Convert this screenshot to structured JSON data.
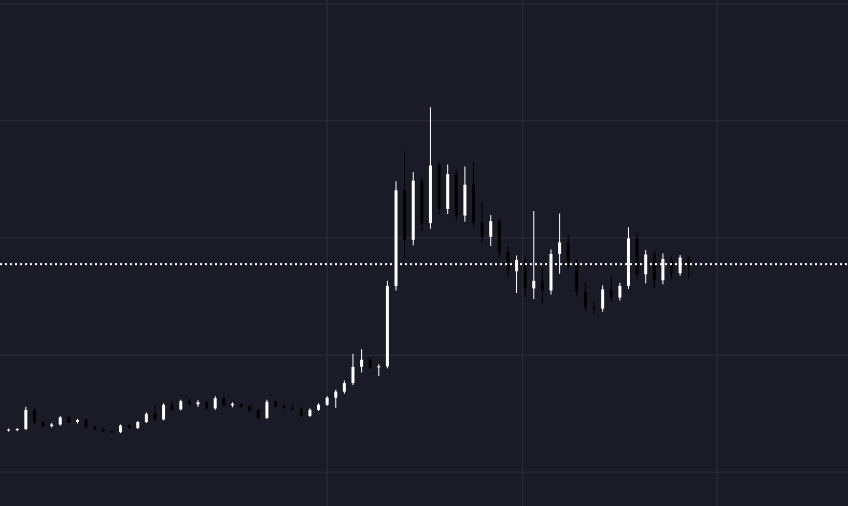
{
  "chart_data": {
    "type": "candlestick",
    "x": [
      0,
      1,
      2,
      3,
      4,
      5,
      6,
      7,
      8,
      9,
      10,
      11,
      12,
      13,
      14,
      15,
      16,
      17,
      18,
      19,
      20,
      21,
      22,
      23,
      24,
      25,
      26,
      27,
      28,
      29,
      30,
      31,
      32,
      33,
      34,
      35,
      36,
      37,
      38,
      39,
      40,
      41,
      42,
      43,
      44,
      45,
      46,
      47,
      48,
      49,
      50,
      51,
      52,
      53,
      54,
      55,
      56,
      57,
      58,
      59,
      60,
      61,
      62,
      63,
      64,
      65,
      66,
      67,
      68,
      69,
      70,
      71,
      72,
      73,
      74,
      75,
      76,
      77,
      78,
      79
    ],
    "open": [
      15,
      15.1,
      15.2,
      19.0,
      16.5,
      15.8,
      16.1,
      17.5,
      16.6,
      17.0,
      15.6,
      15.1,
      14.8,
      14.6,
      15.9,
      15.4,
      16.6,
      18.2,
      17.1,
      20.0,
      19.1,
      20.7,
      20.1,
      20.5,
      19.3,
      21.3,
      19.9,
      20.2,
      19.6,
      18.9,
      17.4,
      20.6,
      19.7,
      19.4,
      19.2,
      17.8,
      19.0,
      20.0,
      21.4,
      22.6,
      24.3,
      27.5,
      28.9,
      27.4,
      27.6,
      43.5,
      62.4,
      52.6,
      64.3,
      55.9,
      67.3,
      58.7,
      65.6,
      57.4,
      63.5,
      56.0,
      53.2,
      56.3,
      50.1,
      46.4,
      48.6,
      43.0,
      44.5,
      42.6,
      49.8,
      52.1,
      47.9,
      42.3,
      39.3,
      39.0,
      42.8,
      41.2,
      43.5,
      52.9,
      45.8,
      49.7,
      44.6,
      48.8,
      46.0,
      49.1
    ],
    "high": [
      15.3,
      15.4,
      19.6,
      19.3,
      16.8,
      16.4,
      17.8,
      17.8,
      17.2,
      17.3,
      15.9,
      15.3,
      15.0,
      16.1,
      16.1,
      16.8,
      18.5,
      19.9,
      20.3,
      20.8,
      21.0,
      21.2,
      20.9,
      20.8,
      21.7,
      21.6,
      20.5,
      20.4,
      19.9,
      19.2,
      21.0,
      20.9,
      20.1,
      20.0,
      19.5,
      19.3,
      20.3,
      21.7,
      23.0,
      24.8,
      30.1,
      31.0,
      29.3,
      28.0,
      44.5,
      64.2,
      70.2,
      66.0,
      65.0,
      78.8,
      68.1,
      67.5,
      66.5,
      67.1,
      67.9,
      60.1,
      57.5,
      56.8,
      51.3,
      49.5,
      49.2,
      58.3,
      47.2,
      50.7,
      57.8,
      53.6,
      48.8,
      44.2,
      40.5,
      43.6,
      45.4,
      44.1,
      55.1,
      54.0,
      50.6,
      50.3,
      49.9,
      49.4,
      49.6,
      49.4
    ],
    "low": [
      14.7,
      14.8,
      15.0,
      16.2,
      15.6,
      15.5,
      15.9,
      16.4,
      16.3,
      15.4,
      14.9,
      14.6,
      14.4,
      14.4,
      15.2,
      15.2,
      16.4,
      16.8,
      16.9,
      18.8,
      18.9,
      19.8,
      19.6,
      19.0,
      19.0,
      19.6,
      19.5,
      19.4,
      18.6,
      17.0,
      17.2,
      19.5,
      19.1,
      18.9,
      17.5,
      17.6,
      18.8,
      19.8,
      19.4,
      22.2,
      23.9,
      26.4,
      27.0,
      25.7,
      27.2,
      42.6,
      48.9,
      51.5,
      54.4,
      54.8,
      57.6,
      57.7,
      56.5,
      56.2,
      55.3,
      52.0,
      51.4,
      49.2,
      45.2,
      42.1,
      41.2,
      40.9,
      40.1,
      41.8,
      45.9,
      46.8,
      41.4,
      38.5,
      38.0,
      38.4,
      40.3,
      40.6,
      42.9,
      44.7,
      44.0,
      43.1,
      43.8,
      44.9,
      45.5,
      45.0
    ],
    "close": [
      15.1,
      15.2,
      19.0,
      16.5,
      15.8,
      16.1,
      17.5,
      16.6,
      17.0,
      15.6,
      15.1,
      14.8,
      14.6,
      15.9,
      15.4,
      16.6,
      18.2,
      17.1,
      20.0,
      19.1,
      20.7,
      20.1,
      20.5,
      19.3,
      21.3,
      19.9,
      20.2,
      19.6,
      18.9,
      17.4,
      20.6,
      19.7,
      19.4,
      19.2,
      17.8,
      19.0,
      20.0,
      21.4,
      22.6,
      24.3,
      27.5,
      28.9,
      27.4,
      27.6,
      43.5,
      62.4,
      52.6,
      64.3,
      55.9,
      67.3,
      58.7,
      65.6,
      57.4,
      63.5,
      56.0,
      53.2,
      56.3,
      50.1,
      46.4,
      48.6,
      43.0,
      44.5,
      42.6,
      49.8,
      52.1,
      47.9,
      42.3,
      39.3,
      39.0,
      42.8,
      41.2,
      43.5,
      52.9,
      45.8,
      49.7,
      44.6,
      48.8,
      46.0,
      49.1,
      47.8
    ],
    "up_color": "#ffffff",
    "down_color": "#000000",
    "grid_color": "#2b2e3b",
    "price_line_color": "#ffffff",
    "price_line": true,
    "grid": true,
    "xlim": [
      -1,
      97.5
    ],
    "ylim": [
      0,
      100
    ],
    "xticks": [
      37,
      59.7,
      82.3
    ],
    "yticks": [
      6.7,
      29.8,
      53,
      76.1,
      99.2
    ]
  }
}
